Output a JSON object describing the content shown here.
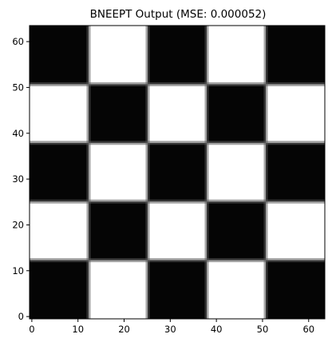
{
  "chart_data": {
    "type": "heatmap",
    "title": "BNEEPT Output (MSE: 0.000052)",
    "xlabel": "",
    "ylabel": "",
    "xlim": [
      -0.5,
      63.5
    ],
    "ylim": [
      -0.5,
      63.5
    ],
    "origin": "lower",
    "colormap": "gray",
    "grid": false,
    "x_ticks": [
      0,
      10,
      20,
      30,
      40,
      50,
      60
    ],
    "y_ticks": [
      0,
      10,
      20,
      30,
      40,
      50,
      60
    ],
    "board": {
      "cells": 5,
      "boundaries": [
        0,
        12.8,
        25.6,
        38.4,
        51.2,
        64
      ],
      "bottom_left_value": 0,
      "cell_values_bottom_to_top": [
        [
          0,
          1,
          0,
          1,
          0
        ],
        [
          1,
          0,
          1,
          0,
          1
        ],
        [
          0,
          1,
          0,
          1,
          0
        ],
        [
          1,
          0,
          1,
          0,
          1
        ],
        [
          0,
          1,
          0,
          1,
          0
        ]
      ],
      "edge_gray_level": 0.35
    },
    "colors": {
      "dark": "#050505",
      "light": "#ffffff",
      "edge": "#5a5a5a",
      "edge_light": "#c8c8c8"
    }
  }
}
